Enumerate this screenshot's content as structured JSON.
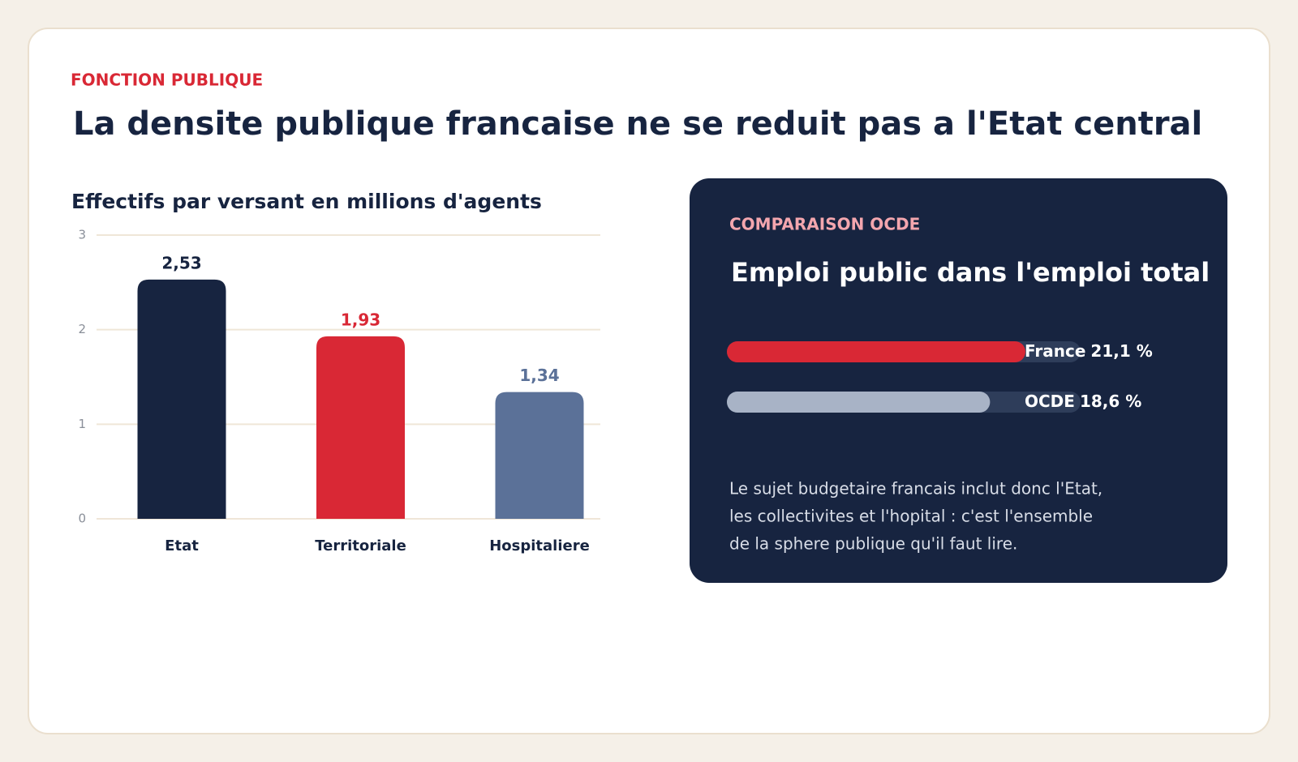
{
  "kicker": "FONCTION PUBLIQUE",
  "title": "La densite publique francaise ne se reduit pas a l'Etat central",
  "chart_data": [
    {
      "type": "bar",
      "title": "Effectifs par versant en millions d'agents",
      "categories": [
        "Etat",
        "Territoriale",
        "Hospitaliere"
      ],
      "values": [
        2.53,
        1.93,
        1.34
      ],
      "value_labels": [
        "2,53",
        "1,93",
        "1,34"
      ],
      "colors": [
        "#172440",
        "#d92835",
        "#5b7198"
      ],
      "label_colors": [
        "#172440",
        "#d92835",
        "#5b7198"
      ],
      "ylim": [
        0,
        3
      ],
      "yticks": [
        0,
        1,
        2,
        3
      ],
      "grid": true
    },
    {
      "type": "hbar",
      "kicker": "COMPARAISON OCDE",
      "title": "Emploi public dans l'emploi total",
      "categories": [
        "France",
        "OCDE"
      ],
      "values": [
        21.1,
        18.6
      ],
      "value_labels": [
        "21,1 %",
        "18,6 %"
      ],
      "colors": [
        "#d92835",
        "#a8b3c6"
      ],
      "xlim": [
        0,
        25
      ],
      "note": [
        "Le sujet budgetaire francais inclut donc l'Etat,",
        "les collectivites et l'hopital : c'est l'ensemble",
        "de la sphere publique qu'il faut lire."
      ]
    }
  ]
}
